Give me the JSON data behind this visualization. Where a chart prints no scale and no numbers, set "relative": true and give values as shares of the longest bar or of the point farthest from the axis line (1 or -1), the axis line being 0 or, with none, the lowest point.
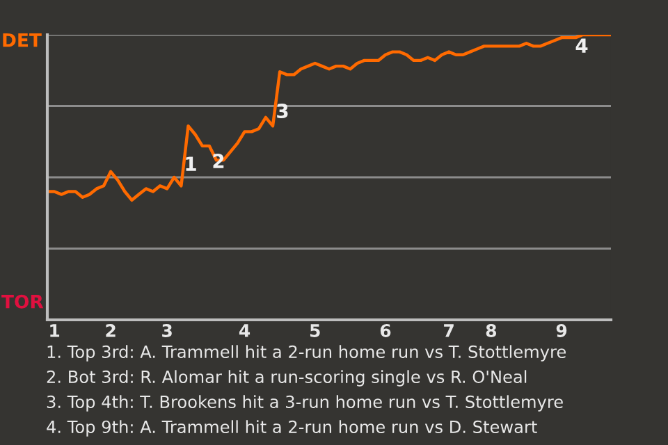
{
  "chart_data": {
    "type": "line",
    "relative": true,
    "categories": [
      null,
      "1",
      null,
      null,
      null,
      null,
      null,
      null,
      null,
      "2",
      null,
      null,
      null,
      null,
      null,
      null,
      null,
      "3",
      null,
      null,
      null,
      null,
      null,
      null,
      null,
      null,
      null,
      null,
      "4",
      null,
      null,
      null,
      null,
      null,
      null,
      null,
      null,
      null,
      "5",
      null,
      null,
      null,
      null,
      null,
      null,
      null,
      null,
      null,
      "6",
      null,
      null,
      null,
      null,
      null,
      null,
      null,
      null,
      "7",
      null,
      null,
      null,
      null,
      null,
      "8",
      null,
      null,
      null,
      null,
      null,
      null,
      null,
      null,
      null,
      "9",
      null,
      null,
      null,
      null,
      null,
      null,
      null
    ],
    "series": [
      {
        "color": "#ff6a00",
        "values": [
          0.45,
          0.45,
          0.44,
          0.45,
          0.45,
          0.43,
          0.44,
          0.46,
          0.47,
          0.52,
          0.49,
          0.45,
          0.42,
          0.44,
          0.46,
          0.45,
          0.47,
          0.46,
          0.5,
          0.47,
          0.68,
          0.65,
          0.61,
          0.61,
          0.56,
          0.56,
          0.59,
          0.62,
          0.66,
          0.66,
          0.67,
          0.71,
          0.68,
          0.87,
          0.86,
          0.86,
          0.88,
          0.89,
          0.9,
          0.89,
          0.88,
          0.89,
          0.89,
          0.88,
          0.9,
          0.91,
          0.91,
          0.91,
          0.93,
          0.94,
          0.94,
          0.93,
          0.91,
          0.91,
          0.92,
          0.91,
          0.93,
          0.94,
          0.93,
          0.93,
          0.94,
          0.95,
          0.96,
          0.96,
          0.96,
          0.96,
          0.96,
          0.96,
          0.97,
          0.96,
          0.96,
          0.97,
          0.98,
          0.99,
          0.99,
          0.99,
          1,
          1,
          1,
          1,
          1
        ]
      }
    ],
    "grid": "y",
    "annotations": [
      "DET",
      "TOR",
      "1",
      "2",
      "3",
      "4",
      "1. Top 3rd: A. Trammell hit a 2-run home run vs T. Stottlemyre",
      "2. Bot 3rd: R. Alomar hit a run-scoring single vs R. O'Neal",
      "3. Top 4th: T. Brookens hit a 3-run home run vs T. Stottlemyre",
      "4. Top 9th: A. Trammell hit a 2-run home run vs D. Stewart"
    ]
  }
}
